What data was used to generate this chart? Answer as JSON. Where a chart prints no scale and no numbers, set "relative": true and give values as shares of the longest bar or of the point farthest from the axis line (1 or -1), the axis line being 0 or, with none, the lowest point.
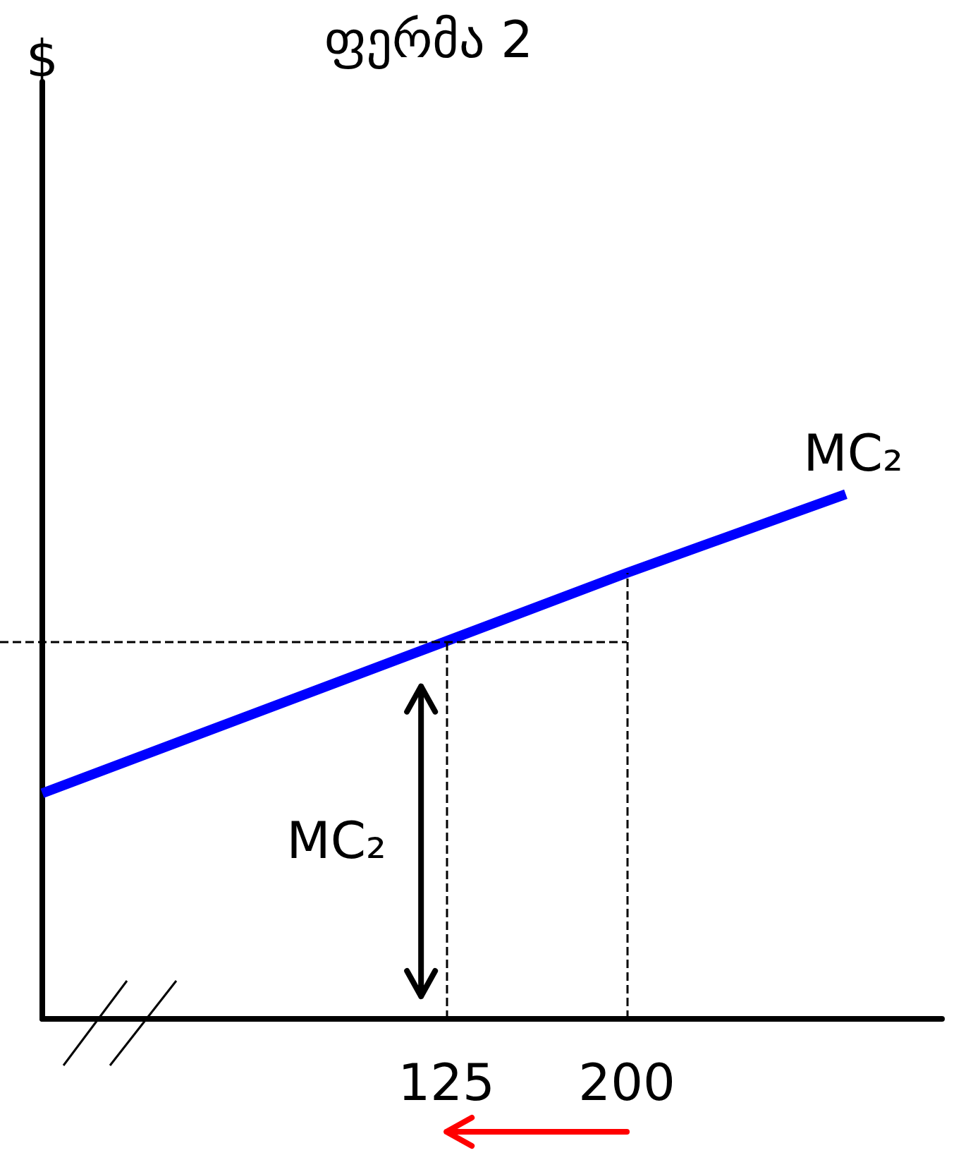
{
  "chart_data": {
    "type": "line",
    "title": "ფერმა 2",
    "relative": true,
    "xlim": [
      -43,
      331
    ],
    "xticks": [
      125,
      200
    ],
    "x": [
      -43,
      125,
      200,
      291
    ],
    "series": [
      {
        "name": "MC₂",
        "color": "#0000ff",
        "values": [
          0.43,
          0.72,
          0.85,
          1
        ]
      }
    ],
    "ref_lines": [
      {
        "axis": "x",
        "value": 125,
        "color": "#000000",
        "line_style": "dashed"
      },
      {
        "axis": "x",
        "value": 200,
        "color": "#000000",
        "line_style": "dashed"
      },
      {
        "axis": "y",
        "value": 0.72,
        "color": "#000000",
        "line_style": "dashed"
      }
    ],
    "annotations": [
      "$",
      "MC₂"
    ],
    "grid": false,
    "legend": false,
    "marker": "none",
    "line_style": "solid"
  }
}
